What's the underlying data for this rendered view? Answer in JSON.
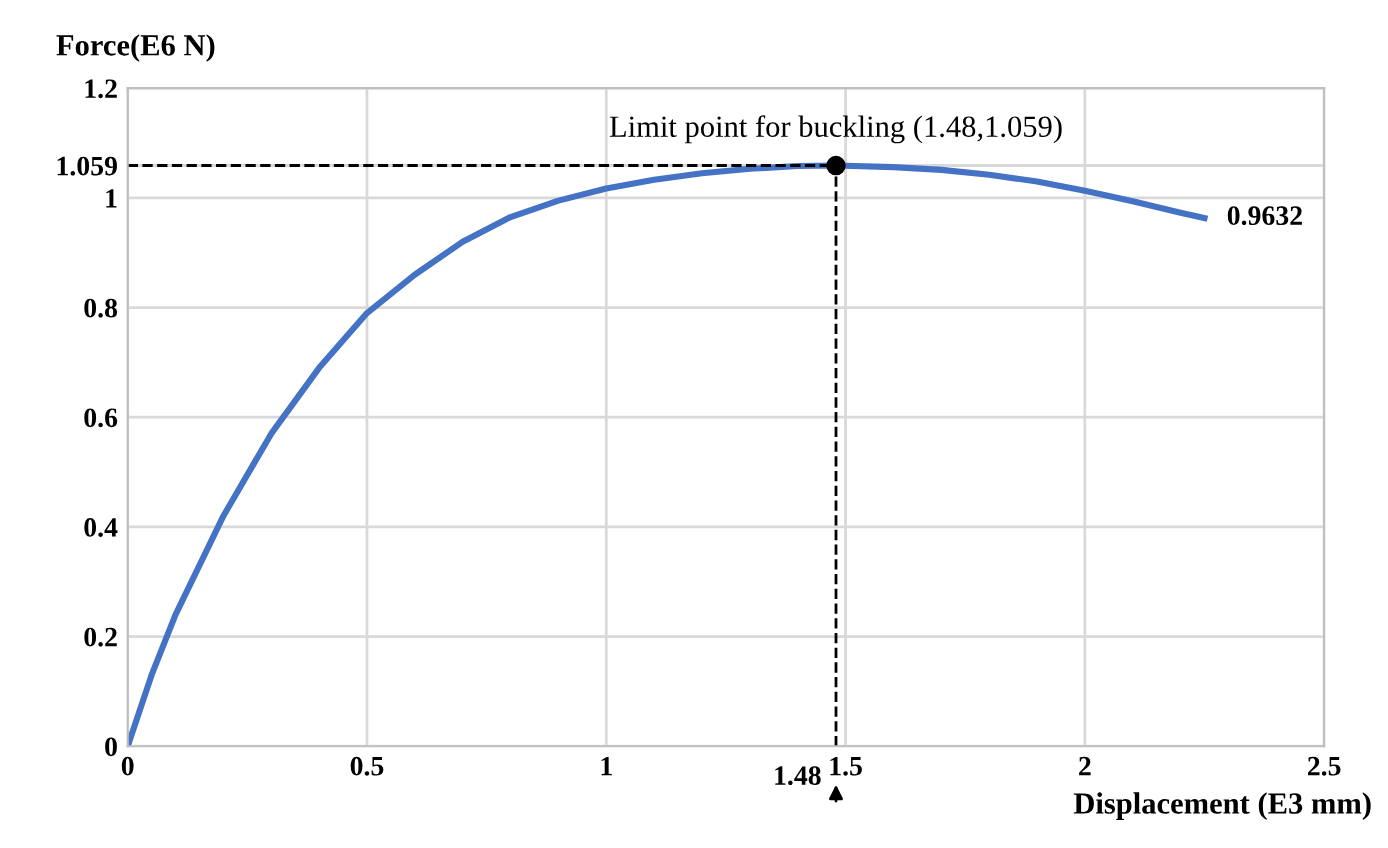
{
  "chart_data": {
    "type": "line",
    "xlabel": "Displacement (E3 mm)",
    "ylabel": "Force(E6 N)",
    "x": [
      0,
      0.05,
      0.1,
      0.2,
      0.3,
      0.4,
      0.5,
      0.6,
      0.7,
      0.8,
      0.9,
      1.0,
      1.1,
      1.2,
      1.3,
      1.4,
      1.48,
      1.6,
      1.7,
      1.8,
      1.9,
      2.0,
      2.1,
      2.2,
      2.25
    ],
    "series": [
      {
        "color": "#4472c4",
        "values": [
          0,
          0.13,
          0.24,
          0.42,
          0.57,
          0.69,
          0.79,
          0.86,
          0.92,
          0.965,
          0.995,
          1.017,
          1.033,
          1.045,
          1.053,
          1.058,
          1.059,
          1.056,
          1.051,
          1.042,
          1.03,
          1.013,
          0.994,
          0.973,
          0.9632
        ]
      }
    ],
    "xlim": [
      0,
      2.5
    ],
    "xticks": [
      0,
      0.5,
      1,
      1.5,
      2,
      2.5
    ],
    "ylim": [
      0,
      1.2
    ],
    "yticks": [
      0,
      0.2,
      0.4,
      0.6,
      0.8,
      1,
      {
        "value": 1.059,
        "label": "1.059"
      },
      1.2
    ],
    "grid": true,
    "legend": false,
    "marker": "none",
    "line_style": "solid",
    "annotations": [
      {
        "text": "Limit point for buckling (1.48,1.059)",
        "x": 1.48,
        "y": 1.059
      },
      {
        "text": "0.9632",
        "x": 2.25,
        "y": 0.9632
      },
      "1.48"
    ],
    "ref_lines": [
      {
        "axis": "x",
        "value": 1.48,
        "line_style": "dashed",
        "color": "#000000"
      },
      {
        "axis": "y",
        "value": 1.059,
        "line_style": "dashed",
        "color": "#000000"
      }
    ]
  }
}
